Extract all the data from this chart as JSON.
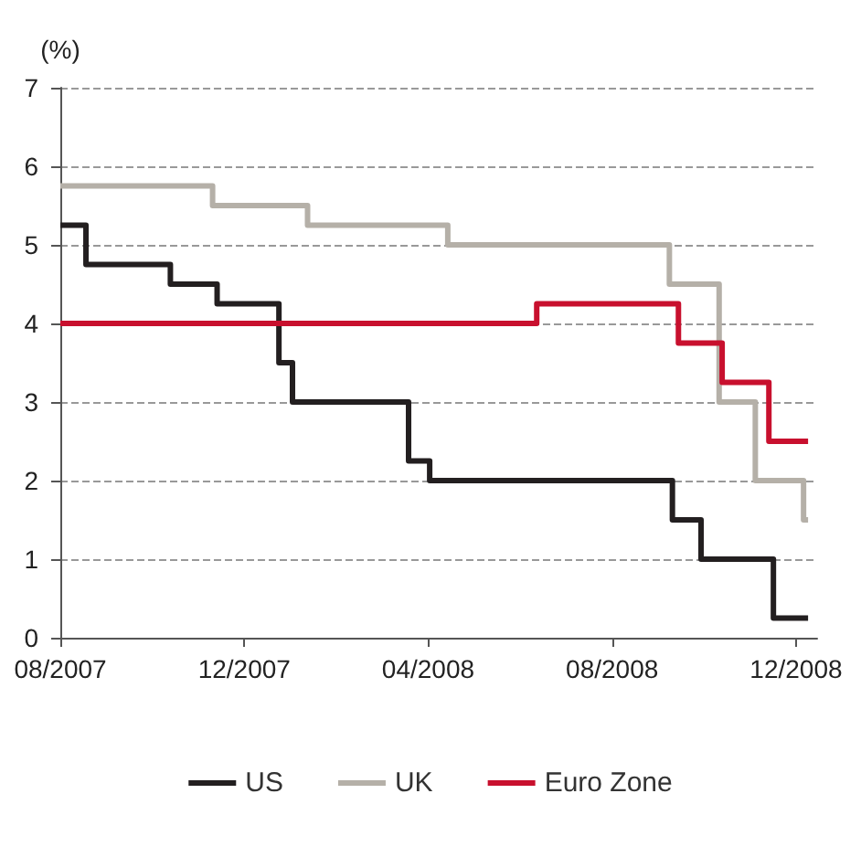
{
  "chart_data": {
    "type": "step",
    "ylabel": "(%)",
    "xlim": [
      "2007-08",
      "2008-12-15"
    ],
    "xticks": [
      {
        "value": "2007-08",
        "label": "08/2007"
      },
      {
        "value": "2007-12",
        "label": "12/2007"
      },
      {
        "value": "2008-04",
        "label": "04/2008"
      },
      {
        "value": "2008-08",
        "label": "08/2008"
      },
      {
        "value": "2008-12",
        "label": "12/2008"
      }
    ],
    "ylim": [
      0,
      7
    ],
    "yticks": [
      0,
      1,
      2,
      3,
      4,
      5,
      6,
      7
    ],
    "grid": "y",
    "legend": "bottom",
    "line_style": "solid",
    "marker": "none",
    "series": [
      {
        "name": "US",
        "color": "#231f20",
        "x": [
          "2007-08-01",
          "2007-08-18",
          "2007-10-13",
          "2007-11-13",
          "2007-12-24",
          "2008-01-02",
          "2008-03-19",
          "2008-04-02",
          "2008-09-10",
          "2008-09-29",
          "2008-11-16",
          "2008-12-09"
        ],
        "values": [
          5.25,
          4.75,
          4.5,
          4.25,
          3.5,
          3.0,
          2.25,
          2.0,
          1.5,
          1.0,
          0.25,
          0.25
        ]
      },
      {
        "name": "UK",
        "color": "#b5b0a8",
        "x": [
          "2007-08-01",
          "2007-11-10",
          "2008-01-12",
          "2008-04-14",
          "2008-09-08",
          "2008-10-11",
          "2008-11-04",
          "2008-12-06",
          "2008-12-09"
        ],
        "values": [
          5.75,
          5.5,
          5.25,
          5.0,
          4.5,
          3.0,
          2.0,
          1.5,
          1.5
        ]
      },
      {
        "name": "Euro Zone",
        "color": "#c8102e",
        "x": [
          "2007-08-01",
          "2008-06-12",
          "2008-09-14",
          "2008-10-13",
          "2008-11-13",
          "2008-12-09"
        ],
        "values": [
          4.0,
          4.25,
          3.75,
          3.25,
          2.5,
          2.5
        ]
      }
    ]
  }
}
